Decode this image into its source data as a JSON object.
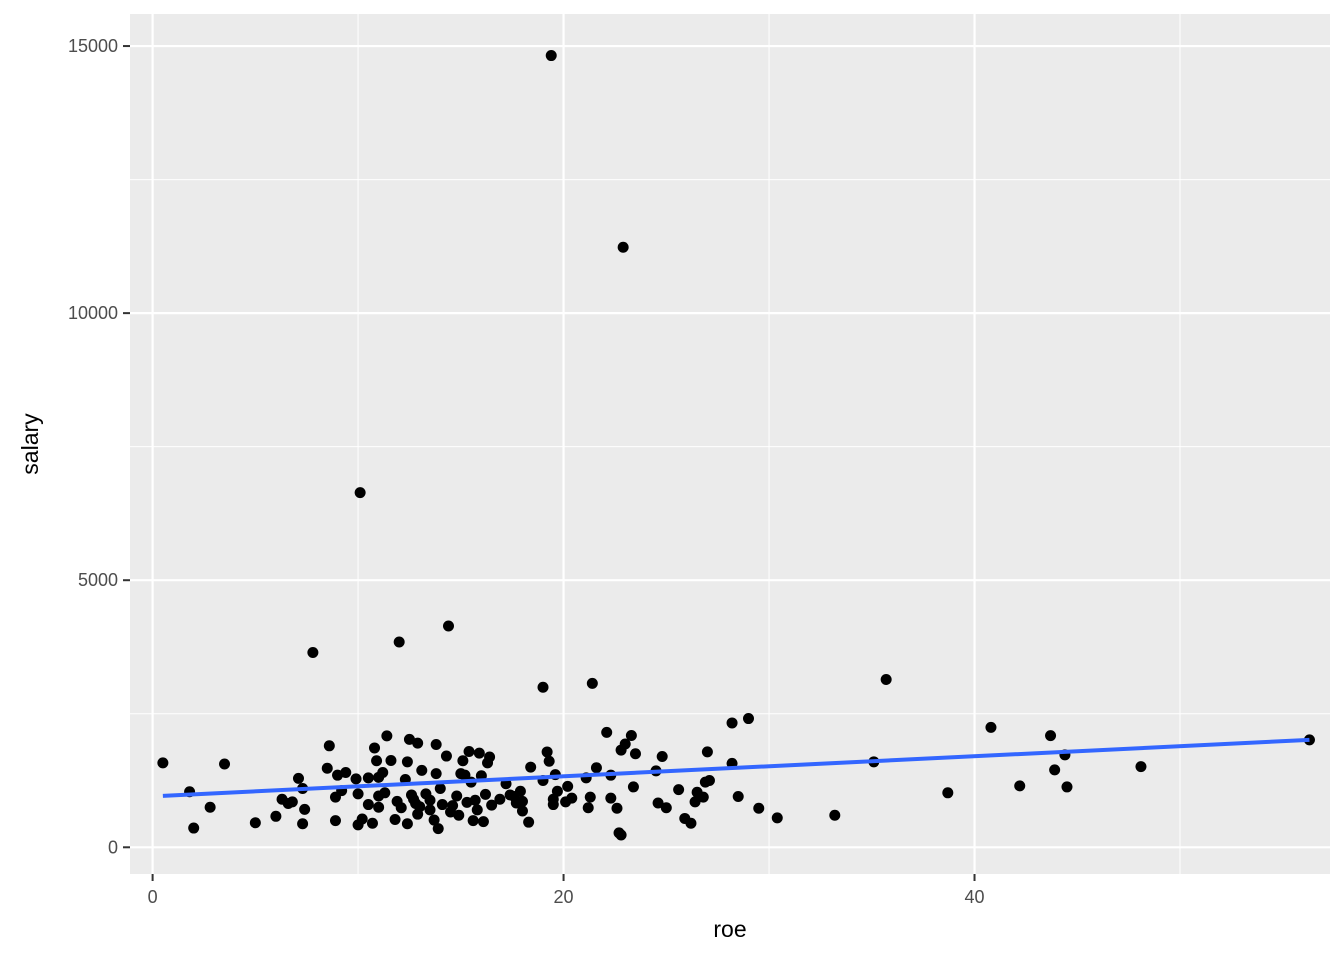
{
  "chart_data": {
    "type": "scatter",
    "title": "",
    "xlabel": "roe",
    "ylabel": "salary",
    "xlim": [
      -1.1,
      57.3
    ],
    "ylim": [
      -500,
      15600
    ],
    "x_ticks": [
      0,
      20,
      40
    ],
    "x_tick_labels": [
      "0",
      "20",
      "40"
    ],
    "x_minor_ticks": [
      10,
      30,
      50
    ],
    "y_ticks": [
      0,
      5000,
      10000,
      15000
    ],
    "y_tick_labels": [
      "0",
      "5000",
      "10000",
      "15000"
    ],
    "y_minor_ticks": [
      2500,
      7500,
      12500
    ],
    "grid": true,
    "colors": {
      "panel": "#ebebeb",
      "grid": "#ffffff",
      "points": "#000000",
      "fit_line": "#3366ff"
    },
    "fit_line": {
      "x": [
        0.5,
        56.3
      ],
      "y": [
        963,
        2011
      ]
    },
    "points": [
      [
        19.4,
        14822
      ],
      [
        22.9,
        11233
      ],
      [
        10.1,
        6640
      ],
      [
        14.4,
        4143
      ],
      [
        12.0,
        3844
      ],
      [
        7.8,
        3646
      ],
      [
        35.7,
        3142
      ],
      [
        21.4,
        3068
      ],
      [
        19.0,
        2996
      ],
      [
        29.0,
        2410
      ],
      [
        28.2,
        2328
      ],
      [
        40.8,
        2245
      ],
      [
        22.1,
        2152
      ],
      [
        43.7,
        2090
      ],
      [
        11.4,
        2085
      ],
      [
        23.3,
        2093
      ],
      [
        56.3,
        2011
      ],
      [
        12.5,
        2020
      ],
      [
        12.9,
        1950
      ],
      [
        13.8,
        1925
      ],
      [
        23.0,
        1933
      ],
      [
        8.6,
        1900
      ],
      [
        10.8,
        1860
      ],
      [
        22.8,
        1820
      ],
      [
        15.4,
        1794
      ],
      [
        19.2,
        1785
      ],
      [
        27.0,
        1786
      ],
      [
        15.9,
        1762
      ],
      [
        23.5,
        1752
      ],
      [
        44.4,
        1730
      ],
      [
        14.3,
        1708
      ],
      [
        24.8,
        1700
      ],
      [
        16.4,
        1690
      ],
      [
        19.3,
        1610
      ],
      [
        10.9,
        1620
      ],
      [
        11.6,
        1625
      ],
      [
        12.4,
        1600
      ],
      [
        15.1,
        1620
      ],
      [
        16.3,
        1580
      ],
      [
        28.2,
        1570
      ],
      [
        35.1,
        1600
      ],
      [
        0.5,
        1580
      ],
      [
        3.5,
        1560
      ],
      [
        18.4,
        1500
      ],
      [
        21.6,
        1490
      ],
      [
        48.1,
        1510
      ],
      [
        8.5,
        1480
      ],
      [
        13.1,
        1440
      ],
      [
        24.5,
        1430
      ],
      [
        43.9,
        1450
      ],
      [
        9.4,
        1400
      ],
      [
        13.8,
        1380
      ],
      [
        15.0,
        1380
      ],
      [
        15.2,
        1350
      ],
      [
        16.0,
        1340
      ],
      [
        19.6,
        1360
      ],
      [
        22.3,
        1350
      ],
      [
        9.0,
        1350
      ],
      [
        10.5,
        1300
      ],
      [
        11.0,
        1310
      ],
      [
        12.3,
        1270
      ],
      [
        7.1,
        1290
      ],
      [
        9.9,
        1280
      ],
      [
        15.5,
        1220
      ],
      [
        17.2,
        1190
      ],
      [
        19.0,
        1250
      ],
      [
        21.1,
        1300
      ],
      [
        26.9,
        1220
      ],
      [
        27.1,
        1250
      ],
      [
        42.2,
        1150
      ],
      [
        44.5,
        1130
      ],
      [
        23.4,
        1130
      ],
      [
        7.3,
        1100
      ],
      [
        14.0,
        1100
      ],
      [
        17.9,
        1050
      ],
      [
        20.2,
        1140
      ],
      [
        25.6,
        1080
      ],
      [
        26.5,
        1030
      ],
      [
        38.7,
        1020
      ],
      [
        1.8,
        1040
      ],
      [
        9.2,
        1060
      ],
      [
        10.0,
        1000
      ],
      [
        11.3,
        1020
      ],
      [
        12.6,
        980
      ],
      [
        13.3,
        1000
      ],
      [
        14.8,
        960
      ],
      [
        16.2,
        990
      ],
      [
        17.4,
        980
      ],
      [
        19.7,
        1050
      ],
      [
        20.4,
        920
      ],
      [
        21.3,
        940
      ],
      [
        22.3,
        920
      ],
      [
        26.8,
        940
      ],
      [
        28.5,
        950
      ],
      [
        6.3,
        900
      ],
      [
        8.9,
        940
      ],
      [
        11.0,
        960
      ],
      [
        12.7,
        900
      ],
      [
        13.5,
        880
      ],
      [
        15.7,
        880
      ],
      [
        18.0,
        860
      ],
      [
        19.5,
        900
      ],
      [
        20.1,
        850
      ],
      [
        24.6,
        830
      ],
      [
        26.4,
        850
      ],
      [
        6.6,
        820
      ],
      [
        10.5,
        800
      ],
      [
        12.8,
        820
      ],
      [
        14.1,
        800
      ],
      [
        16.5,
        790
      ],
      [
        17.7,
        830
      ],
      [
        19.5,
        800
      ],
      [
        21.2,
        740
      ],
      [
        22.6,
        730
      ],
      [
        25.0,
        740
      ],
      [
        29.5,
        730
      ],
      [
        2.8,
        750
      ],
      [
        6.8,
        850
      ],
      [
        7.4,
        710
      ],
      [
        11.0,
        750
      ],
      [
        12.1,
        740
      ],
      [
        13.5,
        700
      ],
      [
        14.5,
        660
      ],
      [
        15.8,
        700
      ],
      [
        18.0,
        680
      ],
      [
        12.9,
        620
      ],
      [
        14.9,
        600
      ],
      [
        6.0,
        580
      ],
      [
        8.9,
        500
      ],
      [
        10.2,
        530
      ],
      [
        11.8,
        520
      ],
      [
        13.7,
        510
      ],
      [
        15.6,
        500
      ],
      [
        16.1,
        480
      ],
      [
        18.3,
        470
      ],
      [
        25.9,
        540
      ],
      [
        26.2,
        450
      ],
      [
        30.4,
        550
      ],
      [
        33.2,
        600
      ],
      [
        5.0,
        460
      ],
      [
        7.3,
        440
      ],
      [
        10.0,
        420
      ],
      [
        10.7,
        450
      ],
      [
        12.4,
        440
      ],
      [
        13.9,
        350
      ],
      [
        2.0,
        360
      ],
      [
        22.7,
        270
      ],
      [
        22.8,
        230
      ],
      [
        11.2,
        1400
      ],
      [
        17.6,
        950
      ],
      [
        16.9,
        900
      ],
      [
        14.6,
        780
      ],
      [
        11.9,
        860
      ],
      [
        13.0,
        760
      ],
      [
        15.3,
        840
      ]
    ]
  }
}
